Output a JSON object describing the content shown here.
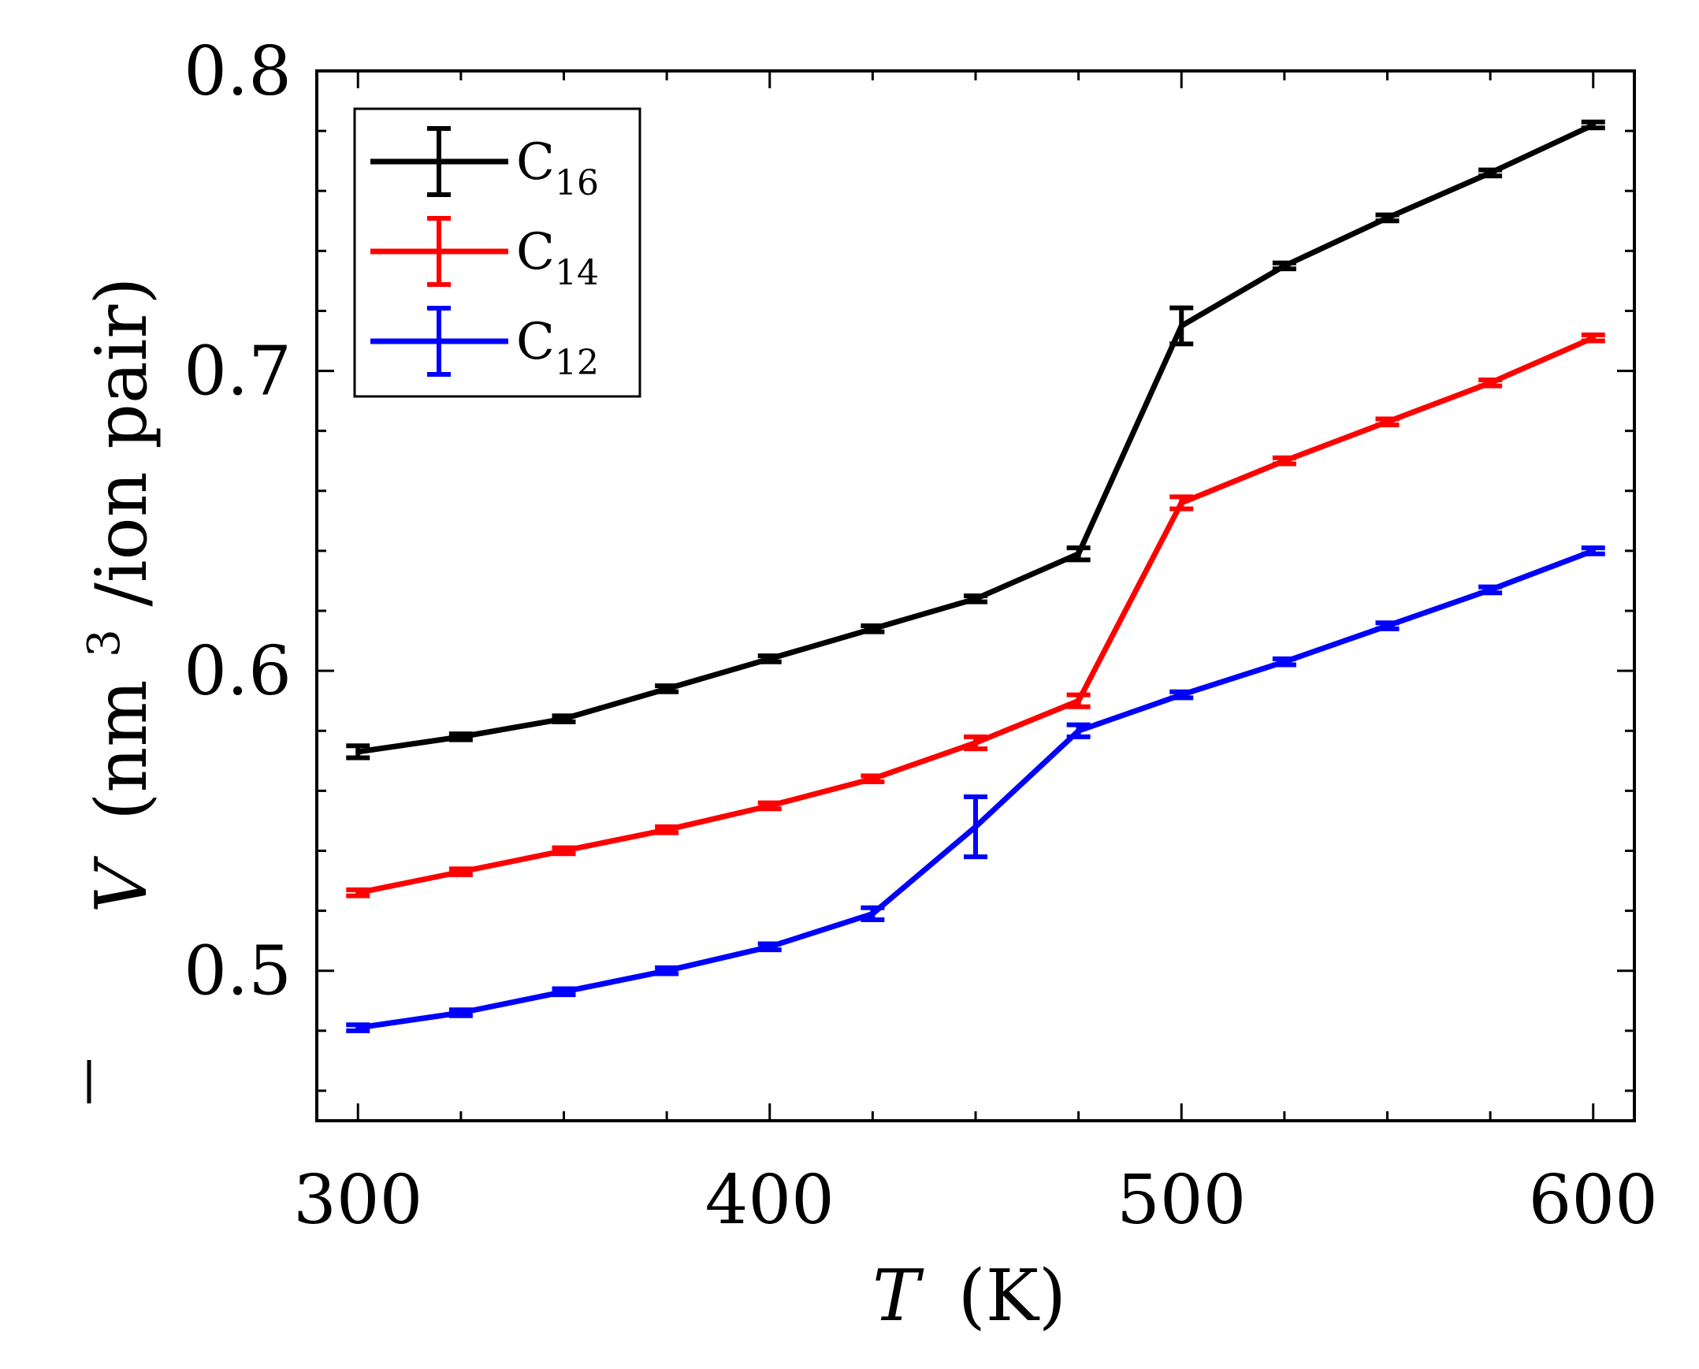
{
  "chart_data": {
    "type": "line",
    "title": "",
    "xlabel": {
      "symbol": "T",
      "unit": "(K)"
    },
    "ylabel": {
      "symbol": "V",
      "unit_open": "(nm",
      "unit_exp": "3",
      "unit_rest": "/ion pair)"
    },
    "xlim": [
      290,
      610
    ],
    "ylim": [
      0.45,
      0.8
    ],
    "xticks": [
      300,
      400,
      500,
      600
    ],
    "xtick_labels": [
      "300",
      "400",
      "500",
      "600"
    ],
    "yticks": [
      0.5,
      0.6,
      0.7,
      0.8
    ],
    "ytick_labels": [
      "0.5",
      "0.6",
      "0.7",
      "0.8"
    ],
    "legend_position": "top-left",
    "x": [
      300,
      325,
      350,
      375,
      400,
      425,
      450,
      475,
      500,
      525,
      550,
      575,
      600
    ],
    "series": [
      {
        "name": "C16",
        "base": "C",
        "sub": "16",
        "color": "#000000",
        "values": [
          0.573,
          0.578,
          0.584,
          0.594,
          0.604,
          0.614,
          0.624,
          0.639,
          0.715,
          0.735,
          0.751,
          0.766,
          0.782
        ],
        "errors": [
          0.002,
          0.001,
          0.001,
          0.001,
          0.001,
          0.001,
          0.001,
          0.002,
          0.006,
          0.001,
          0.001,
          0.001,
          0.001
        ]
      },
      {
        "name": "C14",
        "base": "C",
        "sub": "14",
        "color": "#ff0000",
        "values": [
          0.526,
          0.533,
          0.54,
          0.547,
          0.555,
          0.564,
          0.576,
          0.59,
          0.656,
          0.67,
          0.683,
          0.696,
          0.711
        ],
        "errors": [
          0.001,
          0.001,
          0.001,
          0.001,
          0.001,
          0.001,
          0.002,
          0.002,
          0.002,
          0.001,
          0.001,
          0.001,
          0.001
        ]
      },
      {
        "name": "C12",
        "base": "C",
        "sub": "12",
        "color": "#0000ff",
        "values": [
          0.481,
          0.486,
          0.493,
          0.5,
          0.508,
          0.519,
          0.548,
          0.58,
          0.592,
          0.603,
          0.615,
          0.627,
          0.64
        ],
        "errors": [
          0.001,
          0.001,
          0.001,
          0.001,
          0.001,
          0.002,
          0.01,
          0.002,
          0.001,
          0.001,
          0.001,
          0.001,
          0.001
        ]
      }
    ]
  }
}
